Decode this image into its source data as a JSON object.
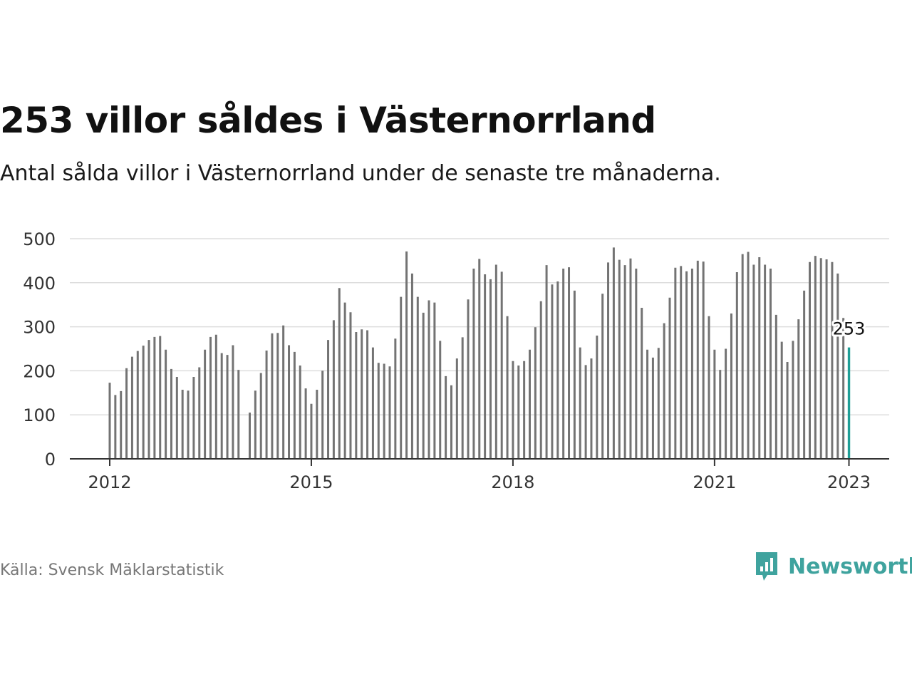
{
  "header": {
    "title": "253 villor såldes i Västernorrland",
    "subtitle": "Antal sålda villor i Västernorrland under de senaste tre månaderna."
  },
  "footer": {
    "source": "Källa: Svensk Mäklarstatistik",
    "brand": "Newsworthy"
  },
  "colors": {
    "bar": "#737373",
    "highlight": "#1f9e96",
    "grid": "#dddddd",
    "axis": "#333333",
    "brand": "#3fa39e"
  },
  "chart_data": {
    "type": "bar",
    "xlabel": "",
    "ylabel": "",
    "ylim": [
      0,
      500
    ],
    "yticks": [
      0,
      100,
      200,
      300,
      400,
      500
    ],
    "xtick_labels": [
      "2012",
      "2015",
      "2018",
      "2021",
      "2023"
    ],
    "x_start": "2012-01",
    "x_end": "2023-01",
    "grid": true,
    "highlight": {
      "x": "2023-01",
      "value": 253,
      "label": "253"
    },
    "series": [
      {
        "values": [
          173,
          145,
          154,
          206,
          232,
          245,
          257,
          270,
          277,
          279,
          248,
          204,
          186,
          157,
          155,
          186,
          208,
          248,
          277,
          282,
          240,
          236,
          258,
          202,
          null,
          105,
          155,
          195,
          246,
          285,
          286,
          303,
          258,
          243,
          212,
          160,
          125,
          157,
          200,
          270,
          315,
          388,
          355,
          333,
          288,
          294,
          292,
          253,
          218,
          216,
          210,
          273,
          368,
          471,
          421,
          368,
          332,
          360,
          355,
          268,
          188,
          167,
          228,
          276,
          362,
          432,
          454,
          419,
          408,
          441,
          425,
          324,
          222,
          212,
          222,
          248,
          299,
          358,
          440,
          396,
          403,
          432,
          435,
          382,
          253,
          213,
          228,
          280,
          375,
          446,
          480,
          452,
          440,
          455,
          432,
          343,
          248,
          230,
          252,
          308,
          366,
          434,
          438,
          426,
          432,
          450,
          448,
          324,
          248,
          202,
          250,
          330,
          424,
          465,
          470,
          441,
          458,
          441,
          432,
          327,
          266,
          220,
          268,
          317,
          382,
          447,
          461,
          456,
          453,
          447,
          421,
          320,
          253
        ]
      }
    ]
  }
}
